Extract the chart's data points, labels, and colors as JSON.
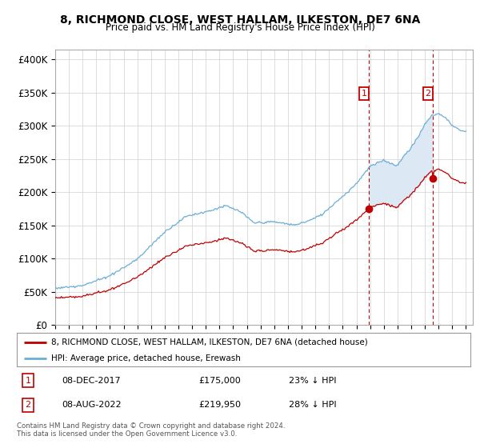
{
  "title": "8, RICHMOND CLOSE, WEST HALLAM, ILKESTON, DE7 6NA",
  "subtitle": "Price paid vs. HM Land Registry's House Price Index (HPI)",
  "ylabel_ticks": [
    "£0",
    "£50K",
    "£100K",
    "£150K",
    "£200K",
    "£250K",
    "£300K",
    "£350K",
    "£400K"
  ],
  "y_values": [
    0,
    50000,
    100000,
    150000,
    200000,
    250000,
    300000,
    350000,
    400000
  ],
  "ylim": [
    0,
    415000
  ],
  "xlim": [
    1995.0,
    2025.5
  ],
  "transaction1_year": 2017.92,
  "transaction2_year": 2022.58,
  "price_dot1_y": 175000,
  "price_dot2_y": 219950,
  "legend_label1": "8, RICHMOND CLOSE, WEST HALLAM, ILKESTON, DE7 6NA (detached house)",
  "legend_label2": "HPI: Average price, detached house, Erewash",
  "footer": "Contains HM Land Registry data © Crown copyright and database right 2024.\nThis data is licensed under the Open Government Licence v3.0.",
  "hpi_color": "#6aaed6",
  "price_color": "#c00000",
  "shade_color": "#dce9f5",
  "annotation_box_color": "#c00000",
  "background_color": "#ffffff",
  "grid_color": "#d0d0d0"
}
